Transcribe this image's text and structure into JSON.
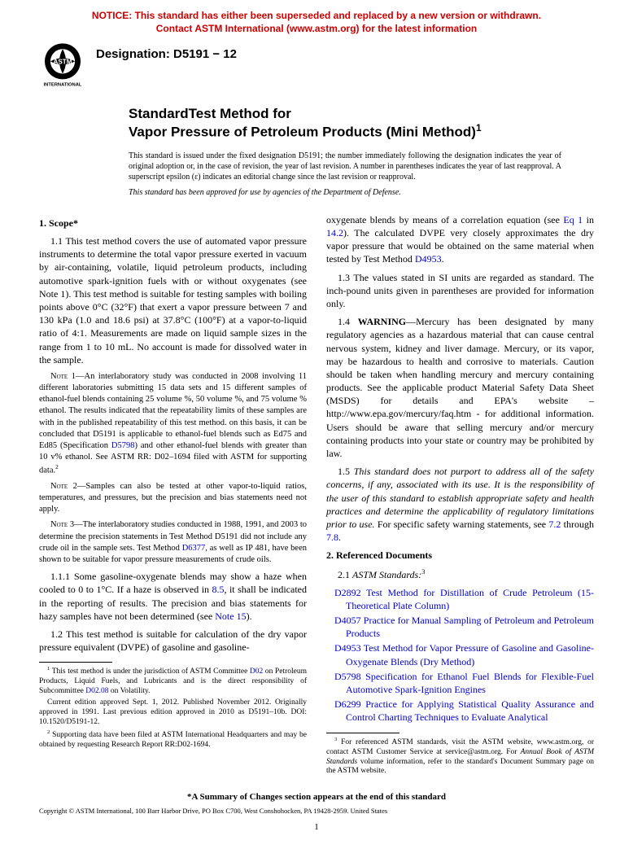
{
  "notice": {
    "line1": "NOTICE: This standard has either been superseded and replaced by a new version or withdrawn.",
    "line2": "Contact ASTM International (www.astm.org) for the latest information"
  },
  "logo": {
    "text_top": "ASTM",
    "text_bottom": "INTERNATIONAL"
  },
  "designation": "Designation: D5191 − 12",
  "title": {
    "label": "StandardTest Method for",
    "main": "Vapor Pressure of Petroleum Products (Mini Method)",
    "sup": "1"
  },
  "issuance": "This standard is issued under the fixed designation D5191; the number immediately following the designation indicates the year of original adoption or, in the case of revision, the year of last revision. A number in parentheses indicates the year of last reapproval. A superscript epsilon (ε) indicates an editorial change since the last revision or reapproval.",
  "dod": "This standard has been approved for use by agencies of the Department of Defense.",
  "sections": {
    "scope_head": "1. Scope*",
    "p1_1": "1.1 This test method covers the use of automated vapor pressure instruments to determine the total vapor pressure exerted in vacuum by air-containing, volatile, liquid petroleum products, including automotive spark-ignition fuels with or without oxygenates (see Note 1). This test method is suitable for testing samples with boiling points above 0°C (32°F) that exert a vapor pressure between 7 and 130 kPa (1.0 and 18.6 psi) at 37.8°C (100°F) at a vapor-to-liquid ratio of 4:1. Measurements are made on liquid sample sizes in the range from 1 to 10 mL. No account is made for dissolved water in the sample.",
    "note1": "NOTE 1—An interlaboratory study was conducted in 2008 involving 11 different laboratories submitting 15 data sets and 15 different samples of ethanol-fuel blends containing 25 volume %, 50 volume %, and 75 volume % ethanol. The results indicated that the repeatability limits of these samples are with in the published repeatability of this test method. on this basis, it can be concluded that D5191 is applicable to ethanol-fuel blends such as Ed75 and Ed85 (Specification D5798) and other ethanol-fuel blends with greater than 10 v% ethanol. See ASTM RR: D02–1694 filed with ASTM for supporting data.",
    "note1_sup": "2",
    "note2": "NOTE 2—Samples can also be tested at other vapor-to-liquid ratios, temperatures, and pressures, but the precision and bias statements need not apply.",
    "note3": "NOTE 3—The interlaboratory studies conducted in 1988, 1991, and 2003 to determine the precision statements in Test Method D5191 did not include any crude oil in the sample sets. Test Method D6377, as well as IP 481, have been shown to be suitable for vapor pressure measurements of crude oils.",
    "p1_1_1": "1.1.1 Some gasoline-oxygenate blends may show a haze when cooled to 0 to 1°C. If a haze is observed in 8.5, it shall be indicated in the reporting of results. The precision and bias statements for hazy samples have not been determined (see Note 15).",
    "p1_2_a": "1.2 This test method is suitable for calculation of the dry vapor pressure equivalent (DVPE) of gasoline and gasoline-",
    "p1_2_b": "oxygenate blends by means of a correlation equation (see Eq 1 in 14.2). The calculated DVPE very closely approximates the dry vapor pressure that would be obtained on the same material when tested by Test Method D4953.",
    "p1_3": "1.3 The values stated in SI units are regarded as standard. The inch-pound units given in parentheses are provided for information only.",
    "p1_4_lead": "1.4 ",
    "p1_4_warn": "WARNING",
    "p1_4_body": "—Mercury has been designated by many regulatory agencies as a hazardous material that can cause central nervous system, kidney and liver damage. Mercury, or its vapor, may be hazardous to health and corrosive to materials. Caution should be taken when handling mercury and mercury containing products. See the applicable product Material Safety Data Sheet (MSDS) for details and EPA's website – http://www.epa.gov/mercury/faq.htm - for additional information. Users should be aware that selling mercury and/or mercury containing products into your state or country may be prohibited by law.",
    "p1_5_lead": "1.5 ",
    "p1_5_italic": "This standard does not purport to address all of the safety concerns, if any, associated with its use. It is the responsibility of the user of this standard to establish appropriate safety and health practices and determine the applicability of regulatory limitations prior to use.",
    "p1_5_tail": " For specific safety warning statements, see 7.2 through 7.8.",
    "refs_head": "2. Referenced Documents",
    "refs_sub": "2.1 ",
    "refs_sub_italic": "ASTM Standards:",
    "refs_sup": "3",
    "ref_items": [
      {
        "code": "D2892",
        "text": " Test Method for Distillation of Crude Petroleum (15-Theoretical Plate Column)"
      },
      {
        "code": "D4057",
        "text": " Practice for Manual Sampling of Petroleum and Petroleum Products"
      },
      {
        "code": "D4953",
        "text": " Test Method for Vapor Pressure of Gasoline and Gasoline-Oxygenate Blends (Dry Method)"
      },
      {
        "code": "D5798",
        "text": " Specification for Ethanol Fuel Blends for Flexible-Fuel Automotive Spark-Ignition Engines"
      },
      {
        "code": "D6299",
        "text": " Practice for Applying Statistical Quality Assurance and Control Charting Techniques to Evaluate Analytical"
      }
    ]
  },
  "footnotes": {
    "fn1": "This test method is under the jurisdiction of ASTM Committee D02 on Petroleum Products, Liquid Fuels, and Lubricants and is the direct responsibility of Subcommittee D02.08 on Volatility.",
    "fn1b": "Current edition approved Sept. 1, 2012. Published November 2012. Originally approved in 1991. Last previous edition approved in 2010 as D5191–10b. DOI: 10.1520/D5191-12.",
    "fn2": "Supporting data have been filed at ASTM International Headquarters and may be obtained by requesting Research Report RR:D02-1694.",
    "fn3": "For referenced ASTM standards, visit the ASTM website, www.astm.org, or contact ASTM Customer Service at service@astm.org. For Annual Book of ASTM Standards volume information, refer to the standard's Document Summary page on the ASTM website."
  },
  "changes_note": "*A Summary of Changes section appears at the end of this standard",
  "copyright": "Copyright © ASTM International, 100 Barr Harbor Drive, PO Box C700, West Conshohocken, PA 19428-2959. United States",
  "page_number": "1",
  "colors": {
    "notice": "#cc0000",
    "link": "#0000cc",
    "text": "#000000",
    "bg": "#ffffff"
  }
}
